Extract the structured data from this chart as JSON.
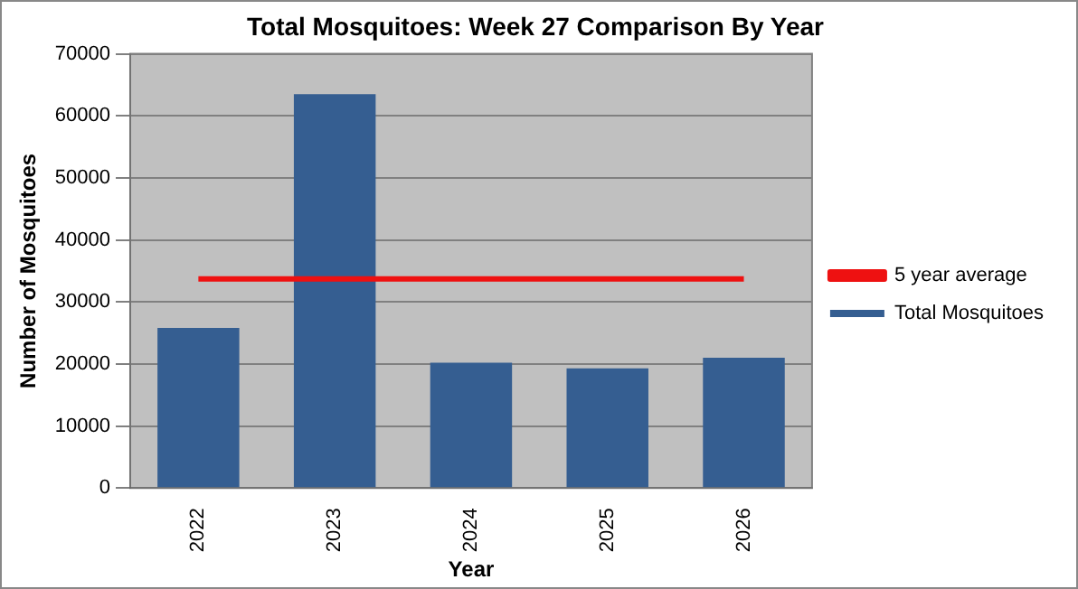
{
  "chart_data": {
    "type": "bar",
    "title": "Total Mosquitoes: Week 27 Comparison By Year",
    "xlabel": "Year",
    "ylabel": "Number of Mosquitoes",
    "categories": [
      "2022",
      "2023",
      "2024",
      "2025",
      "2026"
    ],
    "series": [
      {
        "name": "Total Mosquitoes",
        "color": "#355e91",
        "values": [
          25800,
          63500,
          20200,
          19300,
          21000
        ]
      },
      {
        "name": "5 year average",
        "type": "line",
        "color": "#ee1111",
        "values": [
          33700,
          33700,
          33700,
          33700,
          33700
        ]
      }
    ],
    "ylim": [
      0,
      70000
    ],
    "yticks": [
      0,
      10000,
      20000,
      30000,
      40000,
      50000,
      60000,
      70000
    ],
    "grid": "y",
    "legend": "right",
    "marker": "none"
  }
}
